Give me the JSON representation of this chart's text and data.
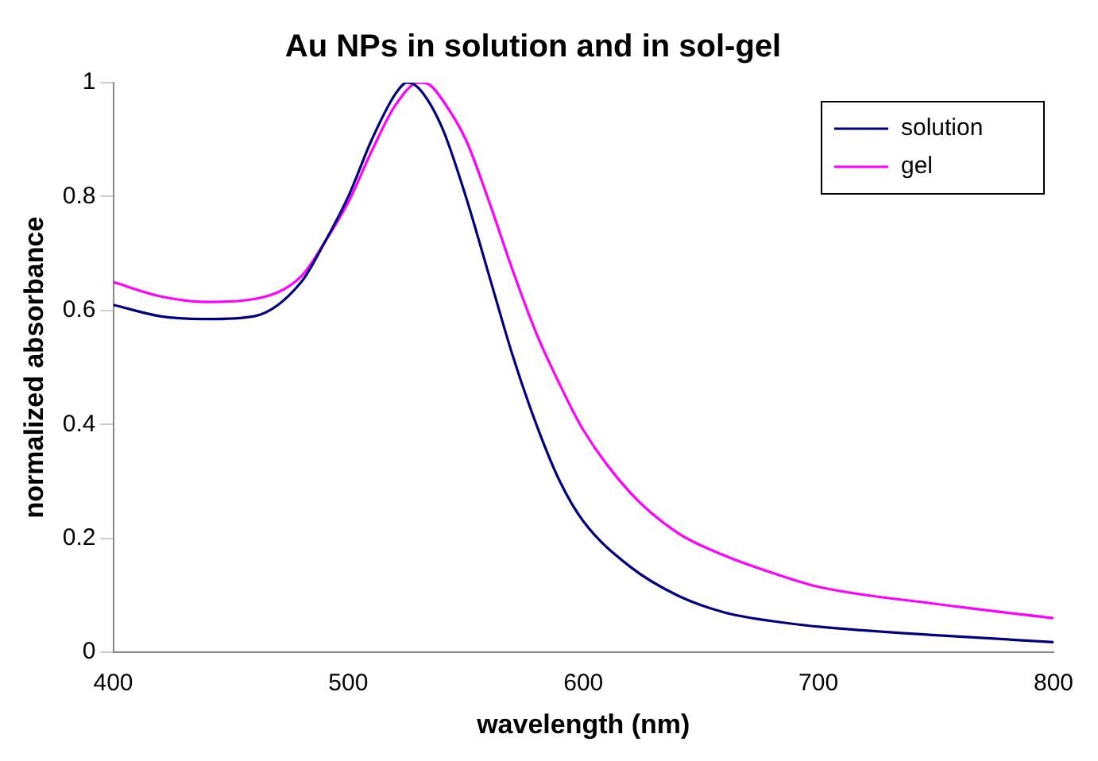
{
  "chart_data": {
    "type": "line",
    "title": "Au NPs in solution and in sol-gel",
    "xlabel": "wavelength (nm)",
    "ylabel": "normalized absorbance",
    "xlim": [
      400,
      800
    ],
    "xticks": [
      400,
      500,
      600,
      700,
      800
    ],
    "ylim": [
      0,
      1
    ],
    "yticks": [
      0,
      0.2,
      0.4,
      0.6,
      0.8,
      1
    ],
    "grid": false,
    "legend": "top right",
    "marker": "none",
    "line_style": "solid",
    "series": [
      {
        "name": "solution",
        "color": "#000080",
        "x": [
          400,
          420,
          440,
          460,
          480,
          490,
          500,
          510,
          520,
          525,
          530,
          540,
          550,
          560,
          570,
          580,
          590,
          600,
          620,
          640,
          660,
          680,
          700,
          750,
          800
        ],
        "values": [
          0.61,
          0.59,
          0.585,
          0.59,
          0.65,
          0.72,
          0.8,
          0.9,
          0.98,
          1.0,
          0.99,
          0.92,
          0.8,
          0.66,
          0.52,
          0.4,
          0.3,
          0.23,
          0.15,
          0.1,
          0.07,
          0.055,
          0.045,
          0.03,
          0.018
        ]
      },
      {
        "name": "gel",
        "color": "#ff00ff",
        "x": [
          400,
          420,
          440,
          460,
          480,
          490,
          500,
          510,
          520,
          530,
          535,
          540,
          550,
          560,
          570,
          580,
          590,
          600,
          620,
          640,
          660,
          680,
          700,
          750,
          800
        ],
        "values": [
          0.65,
          0.625,
          0.615,
          0.62,
          0.66,
          0.72,
          0.79,
          0.88,
          0.96,
          1.0,
          0.995,
          0.97,
          0.9,
          0.79,
          0.67,
          0.56,
          0.47,
          0.39,
          0.28,
          0.21,
          0.17,
          0.14,
          0.115,
          0.085,
          0.06
        ]
      }
    ]
  }
}
